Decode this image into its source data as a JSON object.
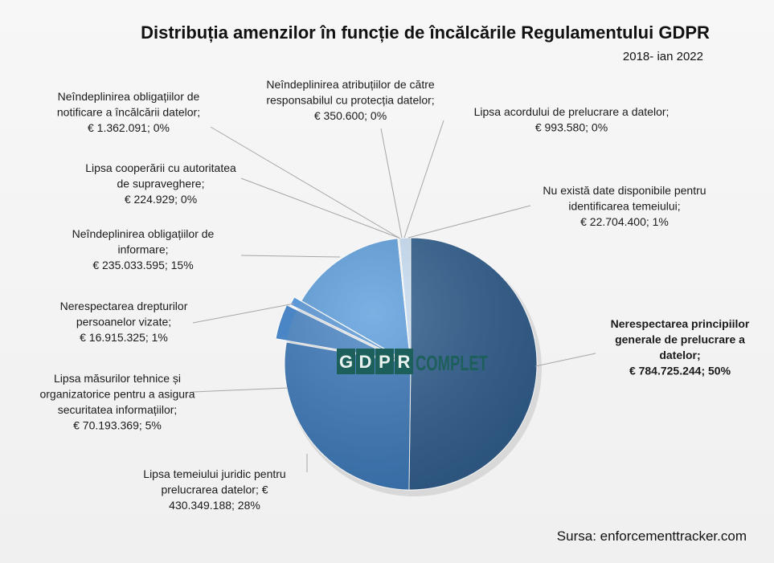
{
  "chart_data": {
    "type": "pie",
    "title": "Distribuția amenzilor în funcție de încălcările Regulamentului GDPR",
    "subtitle": "2018- ian 2022",
    "source": "Sursa: enforcementtracker.com",
    "watermark": [
      "G",
      "D",
      "P",
      "R",
      "COMPLET"
    ],
    "slices": [
      {
        "value": 784725244,
        "color": "#2f5d8c",
        "label": [
          "Nerespectarea principiilor",
          "generale de prelucrare a",
          "datelor;",
          "€ 784.725.244; 50%"
        ],
        "bold": true
      },
      {
        "value": 430349188,
        "color": "#3b78b8",
        "label": [
          "Lipsa temeiului juridic pentru",
          "prelucrarea datelor; €",
          "430.349.188; 28%"
        ]
      },
      {
        "value": 70193369,
        "color": "#4a86c5",
        "label": [
          "Lipsa măsurilor tehnice și",
          "organizatorice pentru a asigura",
          "securitatea informațiilor;",
          "€ 70.193.369; 5%"
        ]
      },
      {
        "value": 16915325,
        "color": "#5a98d8",
        "label": [
          "Nerespectarea drepturilor",
          "persoanelor vizate;",
          "€ 16.915.325; 1%"
        ]
      },
      {
        "value": 235033595,
        "color": "#5e9fdd",
        "label": [
          "Neîndeplinirea obligațiilor de",
          "informare;",
          "€ 235.033.595; 15%"
        ]
      },
      {
        "value": 224929,
        "color": "#7ab2e4",
        "label": [
          "Lipsa cooperării cu autoritatea",
          "de supraveghere;",
          "€ 224.929; 0%"
        ]
      },
      {
        "value": 1362091,
        "color": "#8dbde9",
        "label": [
          "Neîndeplinirea obligațiilor de",
          "notificare a încălcării datelor;",
          "€ 1.362.091; 0%"
        ]
      },
      {
        "value": 350600,
        "color": "#9fc7ec",
        "label": [
          "Neîndeplinirea atribuțiilor de către",
          "responsabilul cu protecția datelor;",
          "€ 350.600; 0%"
        ]
      },
      {
        "value": 993580,
        "color": "#b1d2ef",
        "label": [
          "Lipsa acordului de prelucrare a datelor;",
          "€ 993.580; 0%"
        ]
      },
      {
        "value": 22704400,
        "color": "#c9dff4",
        "label": [
          "Nu există date disponibile pentru",
          "identificarea temeiului;",
          "€ 22.704.400; 1%"
        ]
      }
    ]
  }
}
